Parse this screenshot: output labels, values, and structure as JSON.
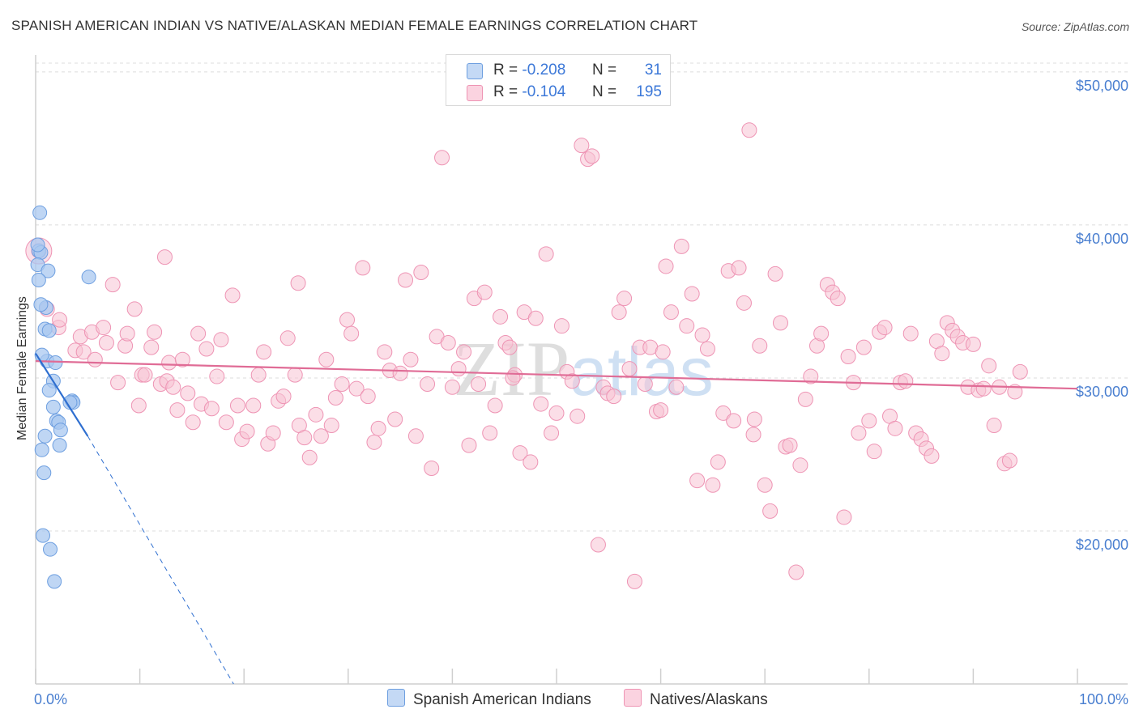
{
  "title": "SPANISH AMERICAN INDIAN VS NATIVE/ALASKAN MEDIAN FEMALE EARNINGS CORRELATION CHART",
  "source": "Source: ZipAtlas.com",
  "watermark": "ZIPatlas",
  "colors": {
    "blue_fill": "#a9c8f0",
    "blue_stroke": "#6e9fe0",
    "blue_line": "#2f6fd0",
    "pink_fill": "#f8c2d4",
    "pink_stroke": "#ee94b4",
    "pink_line": "#e06c96",
    "axis_text": "#4a7fd0"
  },
  "legend": {
    "rows": [
      {
        "r_label": "R =",
        "r_value": "-0.208",
        "n_label": "N =",
        "n_value": "31",
        "color": "#a9c8f0"
      },
      {
        "r_label": "R =",
        "r_value": "-0.104",
        "n_label": "N =",
        "n_value": "195",
        "color": "#f8c2d4"
      }
    ]
  },
  "bottom_legend": {
    "items": [
      {
        "label": "Spanish American Indians",
        "color": "#a9c8f0"
      },
      {
        "label": "Natives/Alaskans",
        "color": "#f8c2d4"
      }
    ]
  },
  "chart_data": {
    "type": "scatter",
    "title": "SPANISH AMERICAN INDIAN VS NATIVE/ALASKAN MEDIAN FEMALE EARNINGS CORRELATION CHART",
    "xlabel": "",
    "ylabel": "Median Female Earnings",
    "xlim": [
      0,
      100
    ],
    "ylim": [
      10000,
      51000
    ],
    "x_tick_labels": [
      "0.0%",
      "100.0%"
    ],
    "y_ticks": [
      20000,
      30000,
      40000,
      50000
    ],
    "y_tick_labels": [
      "$20,000",
      "$30,000",
      "$40,000",
      "$50,000"
    ],
    "series": [
      {
        "name": "Spanish American Indians",
        "r": -0.208,
        "n": 31,
        "trend": {
          "x0": 0,
          "y0": 31600,
          "x1": 5,
          "y1": 26200,
          "dashed_to_x": 19,
          "dashed_to_y": 10000
        },
        "points": [
          [
            0.4,
            40800
          ],
          [
            0.3,
            38300
          ],
          [
            0.5,
            38200
          ],
          [
            0.2,
            37400
          ],
          [
            1.2,
            37000
          ],
          [
            0.3,
            36400
          ],
          [
            5.1,
            36600
          ],
          [
            1.0,
            34600
          ],
          [
            0.9,
            33200
          ],
          [
            1.3,
            33100
          ],
          [
            1.1,
            31100
          ],
          [
            1.9,
            31000
          ],
          [
            0.6,
            31500
          ],
          [
            1.7,
            29800
          ],
          [
            1.3,
            29200
          ],
          [
            3.5,
            28500
          ],
          [
            3.6,
            28400
          ],
          [
            1.7,
            28100
          ],
          [
            2.0,
            27200
          ],
          [
            2.2,
            27100
          ],
          [
            2.4,
            26600
          ],
          [
            0.9,
            26200
          ],
          [
            2.3,
            25600
          ],
          [
            0.6,
            25300
          ],
          [
            0.8,
            23800
          ],
          [
            0.7,
            19700
          ],
          [
            1.4,
            18800
          ],
          [
            1.8,
            16700
          ],
          [
            0.2,
            38700
          ],
          [
            0.5,
            34800
          ],
          [
            3.3,
            28400
          ]
        ]
      },
      {
        "name": "Natives/Alaskans",
        "r": -0.104,
        "n": 195,
        "trend": {
          "x0": 0,
          "y0": 31100,
          "x1": 100,
          "y1": 29300
        },
        "points": [
          [
            0.3,
            38300
          ],
          [
            1.1,
            34500
          ],
          [
            2.2,
            33300
          ],
          [
            2.3,
            33800
          ],
          [
            3.8,
            31800
          ],
          [
            4.3,
            32700
          ],
          [
            4.6,
            31700
          ],
          [
            5.4,
            33000
          ],
          [
            5.7,
            31200
          ],
          [
            6.5,
            33300
          ],
          [
            6.8,
            32300
          ],
          [
            7.4,
            36100
          ],
          [
            7.9,
            29700
          ],
          [
            8.6,
            32100
          ],
          [
            8.8,
            32900
          ],
          [
            9.5,
            34500
          ],
          [
            9.9,
            28200
          ],
          [
            10.2,
            30200
          ],
          [
            10.5,
            30200
          ],
          [
            11.1,
            32000
          ],
          [
            11.4,
            33000
          ],
          [
            12.0,
            29600
          ],
          [
            12.6,
            29800
          ],
          [
            12.8,
            31000
          ],
          [
            13.2,
            29400
          ],
          [
            13.6,
            27900
          ],
          [
            14.1,
            31200
          ],
          [
            14.6,
            29000
          ],
          [
            15.1,
            27100
          ],
          [
            15.6,
            32900
          ],
          [
            15.9,
            28300
          ],
          [
            16.4,
            31900
          ],
          [
            16.9,
            28000
          ],
          [
            17.4,
            30100
          ],
          [
            17.8,
            32500
          ],
          [
            18.3,
            27100
          ],
          [
            18.9,
            35400
          ],
          [
            19.4,
            28200
          ],
          [
            19.8,
            26000
          ],
          [
            20.3,
            26500
          ],
          [
            20.9,
            28200
          ],
          [
            21.4,
            30200
          ],
          [
            21.9,
            31700
          ],
          [
            22.3,
            25700
          ],
          [
            22.8,
            26400
          ],
          [
            23.3,
            28500
          ],
          [
            23.8,
            28800
          ],
          [
            24.2,
            32600
          ],
          [
            24.9,
            30200
          ],
          [
            25.3,
            26900
          ],
          [
            25.8,
            26100
          ],
          [
            26.3,
            24800
          ],
          [
            26.9,
            27600
          ],
          [
            27.4,
            26200
          ],
          [
            27.9,
            31200
          ],
          [
            28.4,
            26900
          ],
          [
            28.8,
            28700
          ],
          [
            29.4,
            29600
          ],
          [
            29.9,
            33800
          ],
          [
            30.3,
            32900
          ],
          [
            30.8,
            29300
          ],
          [
            31.4,
            37200
          ],
          [
            31.9,
            28800
          ],
          [
            32.5,
            25800
          ],
          [
            32.9,
            26700
          ],
          [
            33.5,
            31700
          ],
          [
            34.0,
            30500
          ],
          [
            34.5,
            27300
          ],
          [
            35.0,
            30300
          ],
          [
            35.5,
            36400
          ],
          [
            36.0,
            31200
          ],
          [
            36.5,
            26200
          ],
          [
            37.0,
            36900
          ],
          [
            37.6,
            29600
          ],
          [
            38.0,
            24100
          ],
          [
            38.5,
            32700
          ],
          [
            39.0,
            44400
          ],
          [
            39.6,
            32300
          ],
          [
            40.0,
            29400
          ],
          [
            40.6,
            30600
          ],
          [
            41.1,
            31700
          ],
          [
            41.6,
            25600
          ],
          [
            42.1,
            35200
          ],
          [
            42.5,
            29600
          ],
          [
            43.1,
            35600
          ],
          [
            43.6,
            26400
          ],
          [
            44.1,
            28200
          ],
          [
            44.6,
            34000
          ],
          [
            45.1,
            32300
          ],
          [
            45.5,
            32000
          ],
          [
            46.0,
            30200
          ],
          [
            46.5,
            25100
          ],
          [
            46.9,
            34300
          ],
          [
            47.5,
            24500
          ],
          [
            48.0,
            33900
          ],
          [
            48.5,
            28300
          ],
          [
            49.0,
            38100
          ],
          [
            49.5,
            26400
          ],
          [
            50.0,
            27700
          ],
          [
            50.5,
            33400
          ],
          [
            51.0,
            30400
          ],
          [
            51.5,
            29800
          ],
          [
            52.0,
            27500
          ],
          [
            52.4,
            45200
          ],
          [
            53.0,
            44300
          ],
          [
            53.4,
            44500
          ],
          [
            54.0,
            19100
          ],
          [
            54.5,
            29400
          ],
          [
            54.9,
            29000
          ],
          [
            55.5,
            28800
          ],
          [
            56.0,
            34300
          ],
          [
            56.5,
            35200
          ],
          [
            57.0,
            30600
          ],
          [
            57.5,
            16700
          ],
          [
            58.0,
            32000
          ],
          [
            58.5,
            29600
          ],
          [
            59.0,
            32000
          ],
          [
            59.6,
            27800
          ],
          [
            60.0,
            27900
          ],
          [
            60.5,
            37300
          ],
          [
            61.0,
            34300
          ],
          [
            61.5,
            29400
          ],
          [
            62.0,
            38600
          ],
          [
            62.5,
            33400
          ],
          [
            63.0,
            35500
          ],
          [
            63.5,
            23300
          ],
          [
            64.0,
            32800
          ],
          [
            64.5,
            31900
          ],
          [
            65.0,
            23000
          ],
          [
            65.5,
            24500
          ],
          [
            66.0,
            27700
          ],
          [
            66.5,
            37000
          ],
          [
            67.0,
            27200
          ],
          [
            67.5,
            37200
          ],
          [
            68.0,
            34900
          ],
          [
            68.5,
            46200
          ],
          [
            69.0,
            27300
          ],
          [
            69.5,
            32100
          ],
          [
            70.0,
            23000
          ],
          [
            70.5,
            21300
          ],
          [
            71.0,
            36800
          ],
          [
            71.5,
            33600
          ],
          [
            72.0,
            25500
          ],
          [
            72.4,
            25600
          ],
          [
            73.0,
            17300
          ],
          [
            73.4,
            24300
          ],
          [
            73.9,
            28600
          ],
          [
            74.4,
            30100
          ],
          [
            75.0,
            32100
          ],
          [
            75.4,
            32900
          ],
          [
            76.0,
            36100
          ],
          [
            76.5,
            35600
          ],
          [
            77.0,
            35200
          ],
          [
            77.6,
            20900
          ],
          [
            78.0,
            31400
          ],
          [
            78.5,
            29700
          ],
          [
            79.0,
            26400
          ],
          [
            79.5,
            32000
          ],
          [
            80.0,
            27200
          ],
          [
            80.5,
            25200
          ],
          [
            81.0,
            33000
          ],
          [
            81.5,
            33300
          ],
          [
            82.0,
            27500
          ],
          [
            82.5,
            26700
          ],
          [
            83.0,
            29700
          ],
          [
            83.5,
            29800
          ],
          [
            84.0,
            32900
          ],
          [
            84.5,
            26400
          ],
          [
            85.0,
            26000
          ],
          [
            85.5,
            25400
          ],
          [
            86.0,
            24900
          ],
          [
            86.5,
            32400
          ],
          [
            87.0,
            31600
          ],
          [
            87.5,
            33600
          ],
          [
            88.0,
            33100
          ],
          [
            88.5,
            32700
          ],
          [
            89.0,
            32300
          ],
          [
            89.5,
            29400
          ],
          [
            90.0,
            32200
          ],
          [
            90.5,
            29200
          ],
          [
            91.0,
            29300
          ],
          [
            91.5,
            30800
          ],
          [
            92.0,
            26900
          ],
          [
            92.5,
            29400
          ],
          [
            93.0,
            24400
          ],
          [
            93.5,
            24600
          ],
          [
            94.0,
            29100
          ],
          [
            94.5,
            30400
          ],
          [
            60.2,
            31700
          ],
          [
            45.8,
            30000
          ],
          [
            25.2,
            36200
          ],
          [
            12.4,
            37900
          ],
          [
            68.9,
            26300
          ]
        ]
      }
    ]
  }
}
